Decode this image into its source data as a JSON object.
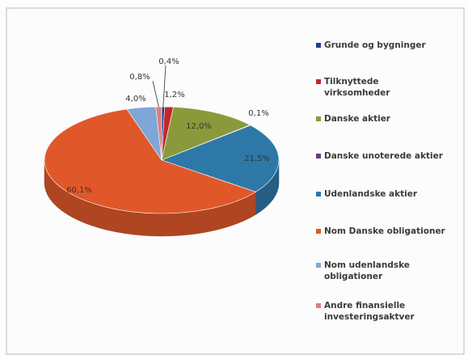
{
  "chart_data": {
    "type": "pie",
    "categories": [
      "Grunde og bygninger",
      "Tilknyttede virksomheder",
      "Danske aktier",
      "Danske unoterede aktier",
      "Udenlandske aktier",
      "Nom Danske obligationer",
      "Nom udenlandske obligationer",
      "Andre finansielle investeringsaktver"
    ],
    "values": [
      0.4,
      1.2,
      12.0,
      0.1,
      21.5,
      60.1,
      4.0,
      0.8
    ],
    "value_labels": [
      "0,4%",
      "1,2%",
      "12,0%",
      "0,1%",
      "21,5%",
      "60,1%",
      "4,0%",
      "0,8%"
    ],
    "colors": [
      "#1f3f8f",
      "#c0272d",
      "#8a9a3b",
      "#6a3c7f",
      "#2e78a8",
      "#e0582a",
      "#7ea6d6",
      "#d98080"
    ],
    "legend": "right"
  }
}
